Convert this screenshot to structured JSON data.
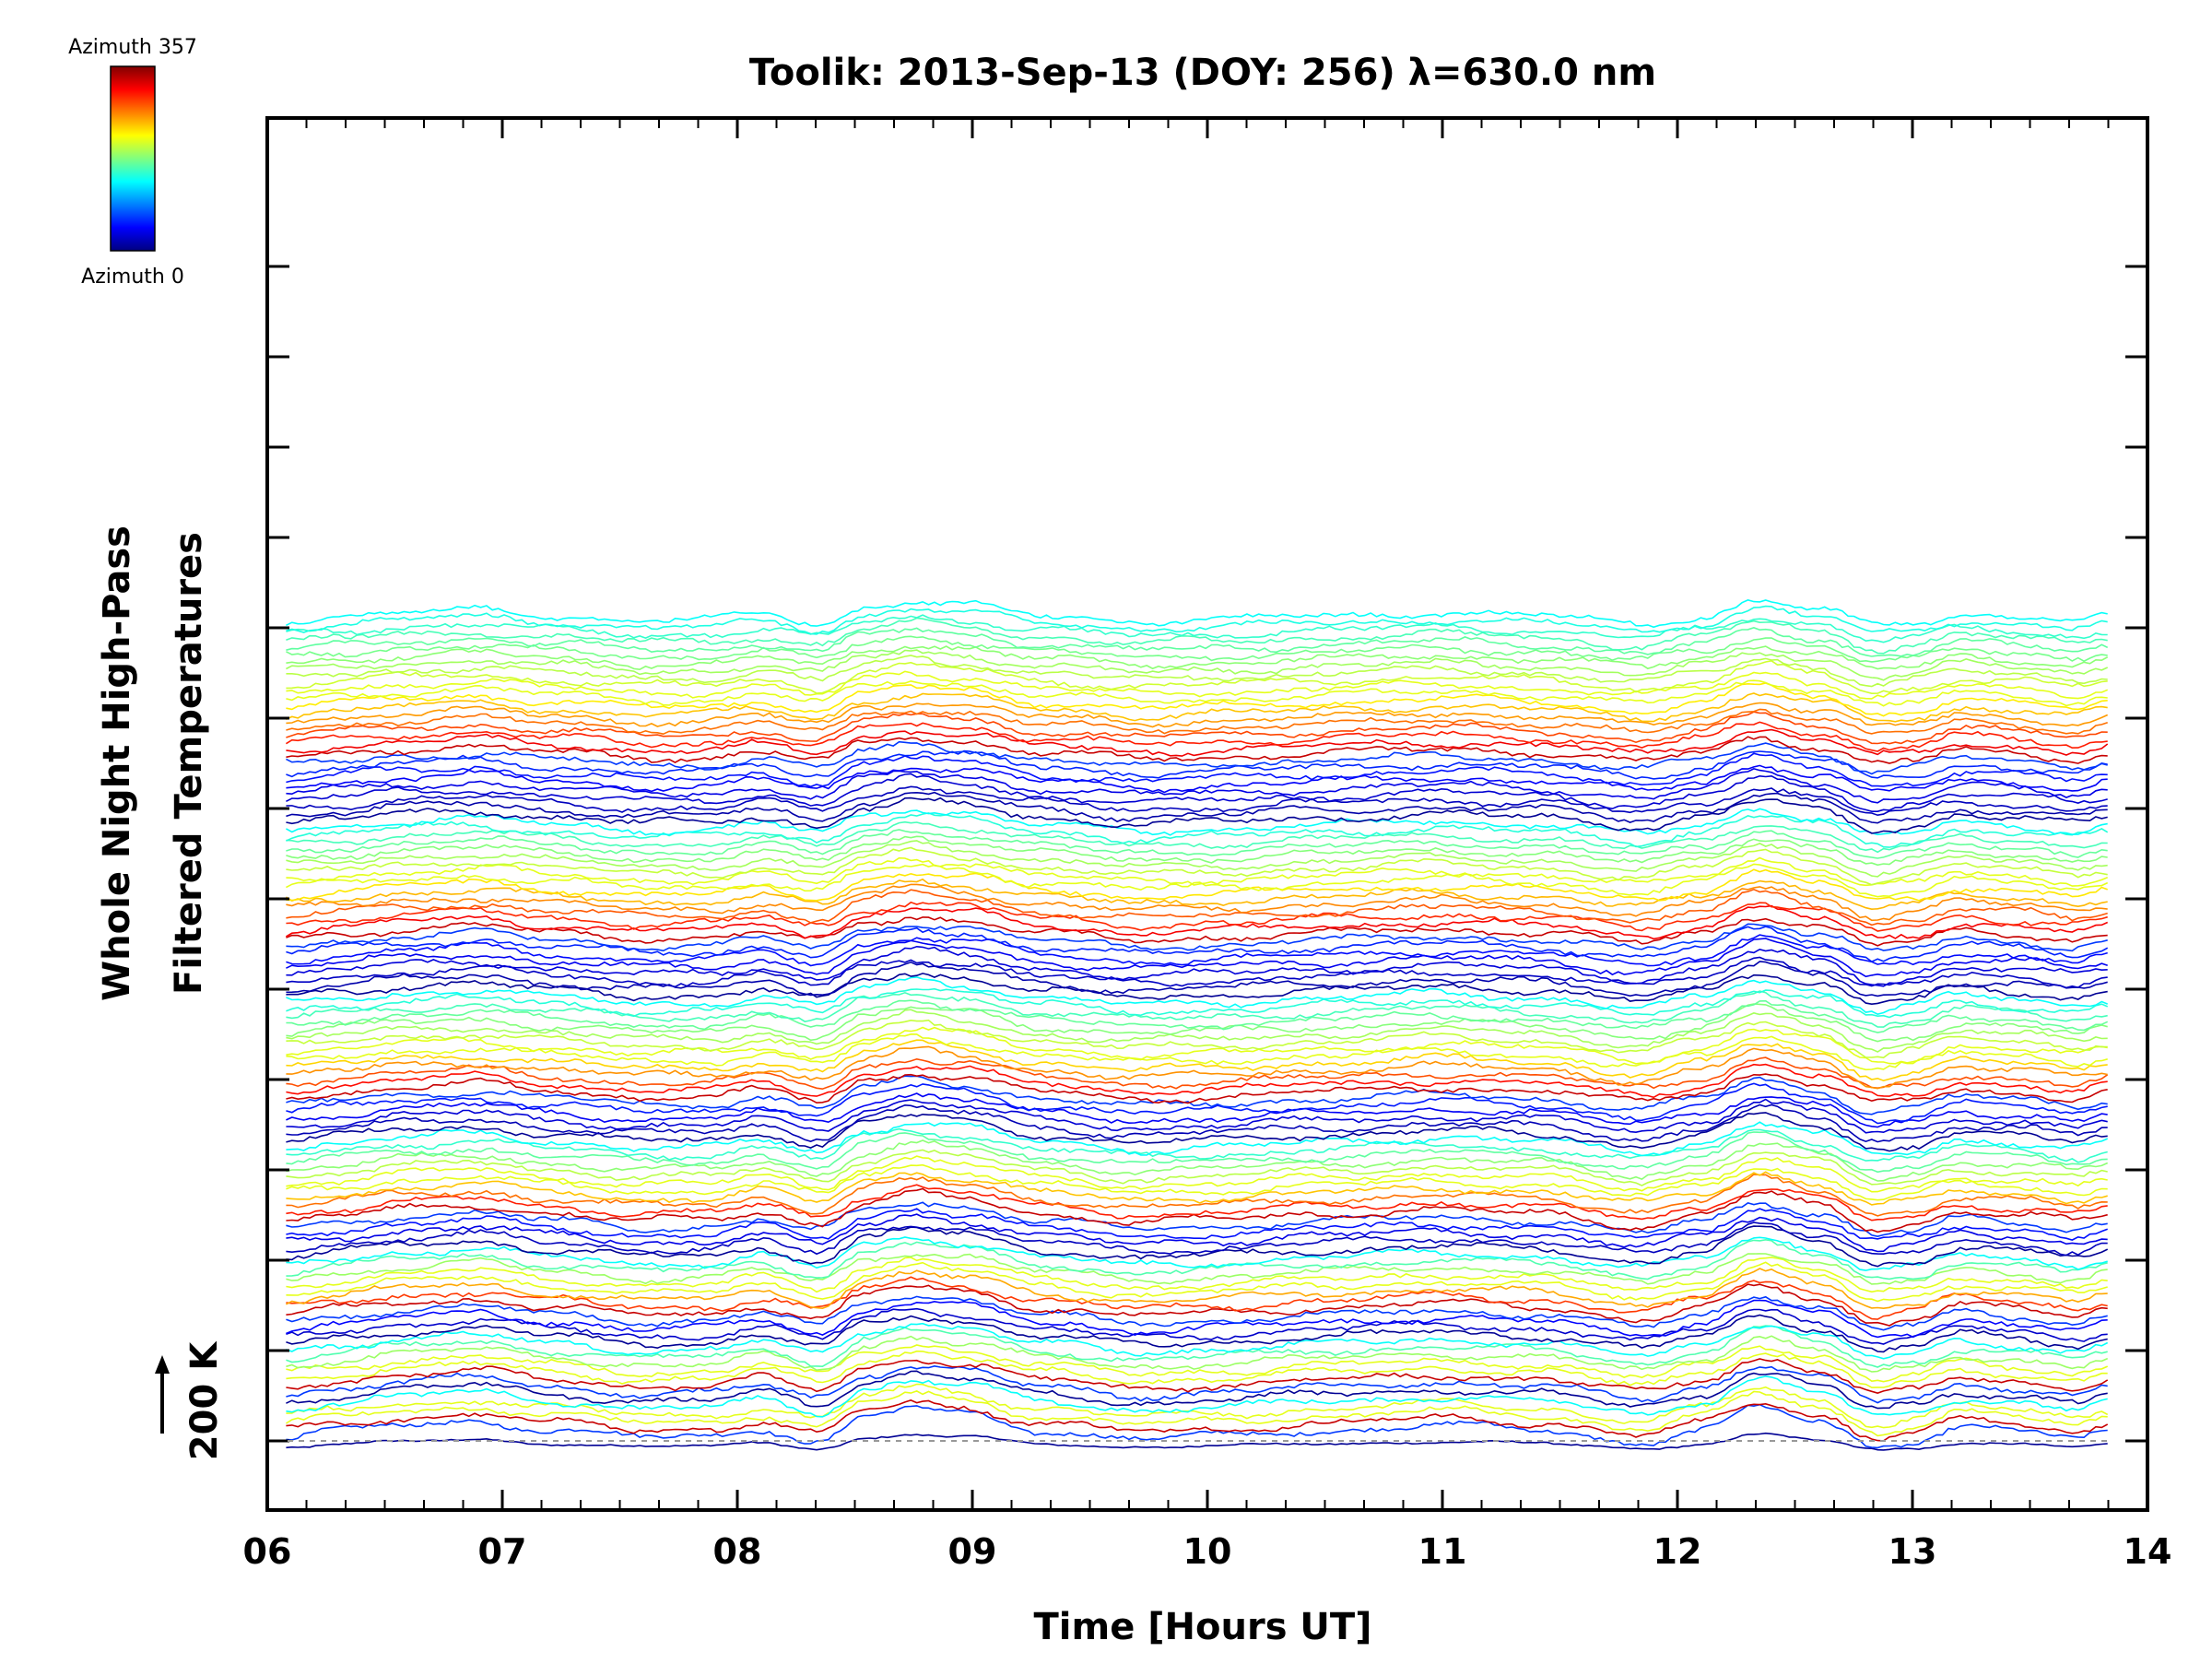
{
  "chart_data": {
    "type": "line",
    "title": "Toolik: 2013-Sep-13 (DOY: 256) λ=630.0 nm",
    "xlabel": "Time [Hours UT]",
    "ylabel_line1": "Whole Night High-Pass",
    "ylabel_line2": "Filtered Temperatures",
    "xlim": [
      6,
      14
    ],
    "x_ticks": [
      "06",
      "07",
      "08",
      "09",
      "10",
      "11",
      "12",
      "13",
      "14"
    ],
    "x_start": 6.08,
    "x_end": 13.83,
    "scale_bar_label": "200 K",
    "colorbar": {
      "top_label": "Azimuth 357",
      "bottom_label": "Azimuth 0",
      "min_azimuth": 0,
      "max_azimuth": 357
    },
    "n_traces": 115,
    "stack_spacing_fraction_of_scale_bar": 0.087,
    "group_sizes": [
      6,
      8,
      12,
      16,
      20,
      24,
      29
    ],
    "azimuth_ratio_order": [
      "low",
      "high",
      "mid"
    ],
    "common_pattern": {
      "hours": [
        6.08,
        6.3,
        6.6,
        6.9,
        7.2,
        7.6,
        7.9,
        8.1,
        8.35,
        8.55,
        8.75,
        8.95,
        9.3,
        9.7,
        10.1,
        10.5,
        11.0,
        11.4,
        11.85,
        12.1,
        12.35,
        12.6,
        12.85,
        13.0,
        13.2,
        13.45,
        13.7,
        13.83
      ],
      "kelvin": [
        -8,
        5,
        22,
        30,
        10,
        -8,
        -6,
        12,
        -18,
        40,
        62,
        48,
        8,
        -12,
        -4,
        8,
        20,
        10,
        -22,
        8,
        62,
        30,
        -30,
        -18,
        15,
        5,
        -12,
        5
      ]
    }
  }
}
